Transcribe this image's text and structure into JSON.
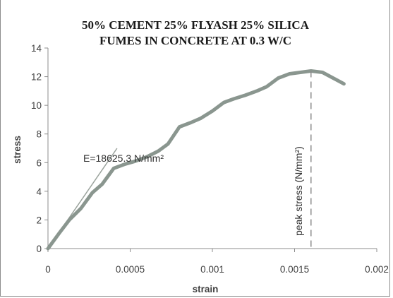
{
  "chart_data": {
    "type": "line",
    "title_lines": [
      "50% CEMENT 25% FLYASH 25% SILICA",
      "FUMES IN CONCRETE AT 0.3 W/C"
    ],
    "xlabel": "strain",
    "ylabel": "stress",
    "xlim": [
      0,
      0.002
    ],
    "ylim": [
      0,
      14
    ],
    "x_ticks": [
      "0",
      "0.0005",
      "0.001",
      "0.0015",
      "0.002"
    ],
    "y_ticks": [
      "0",
      "2",
      "4",
      "6",
      "8",
      "10",
      "12",
      "14"
    ],
    "grid": false,
    "legend": "none",
    "series": [
      {
        "color": "#8a968f",
        "x": [
          0,
          7e-05,
          0.00013,
          0.0002,
          0.00027,
          0.00033,
          0.0004,
          0.00047,
          0.00053,
          0.0006,
          0.00067,
          0.00073,
          0.0008,
          0.00087,
          0.00093,
          0.001,
          0.00107,
          0.00113,
          0.0012,
          0.00127,
          0.00133,
          0.0014,
          0.00147,
          0.0016,
          0.00167,
          0.0018
        ],
        "y": [
          0,
          1.1,
          2.0,
          2.8,
          3.9,
          4.5,
          5.6,
          5.9,
          6.1,
          6.4,
          6.8,
          7.3,
          8.5,
          8.8,
          9.1,
          9.6,
          10.2,
          10.45,
          10.7,
          11.0,
          11.3,
          11.9,
          12.2,
          12.4,
          12.3,
          11.5
        ]
      }
    ],
    "modulus_line": {
      "x": [
        0,
        0.00042
      ],
      "y": [
        0,
        7.0
      ],
      "color": "#9aa29c"
    },
    "peak_line": {
      "x": 0.0016,
      "y": 12.4,
      "color": "#8c8c8c"
    },
    "annotations": {
      "modulus": "E=18625.3 N/mm²",
      "peak": "peak stress (N/mm²)"
    }
  }
}
